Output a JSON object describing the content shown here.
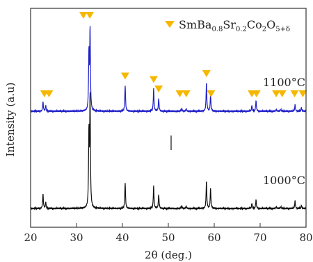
{
  "chart_data": {
    "type": "line",
    "title": "",
    "xlabel": "2θ (deg.)",
    "ylabel": "Intensity (a.u)",
    "xlim": [
      20,
      80
    ],
    "x_ticks": [
      "20",
      "30",
      "40",
      "50",
      "60",
      "70",
      "80"
    ],
    "y_ticks_shown": false,
    "grid": false,
    "legend": {
      "placement": "top-right",
      "marker": "down-triangle",
      "marker_color": "#f5b800",
      "label_parts": [
        "SmBa",
        "0.8",
        "Sr",
        "0.2",
        "Co",
        "2",
        "O",
        "5+δ"
      ]
    },
    "series": [
      {
        "name": "1100°C",
        "color": "#1f1fc8",
        "offset": 1.0,
        "peaks": [
          {
            "x": 22.7,
            "h": 0.08
          },
          {
            "x": 23.3,
            "h": 0.05
          },
          {
            "x": 32.7,
            "h": 0.48
          },
          {
            "x": 32.95,
            "h": 0.68
          },
          {
            "x": 40.6,
            "h": 0.22
          },
          {
            "x": 46.8,
            "h": 0.19
          },
          {
            "x": 47.9,
            "h": 0.11
          },
          {
            "x": 52.9,
            "h": 0.02
          },
          {
            "x": 53.9,
            "h": 0.02
          },
          {
            "x": 58.3,
            "h": 0.24
          },
          {
            "x": 59.2,
            "h": 0.14
          },
          {
            "x": 68.2,
            "h": 0.05
          },
          {
            "x": 69.1,
            "h": 0.09
          },
          {
            "x": 73.5,
            "h": 0.015
          },
          {
            "x": 74.5,
            "h": 0.015
          },
          {
            "x": 77.6,
            "h": 0.055
          },
          {
            "x": 79.0,
            "h": 0.03
          }
        ]
      },
      {
        "name": "1000°C",
        "color": "#111111",
        "offset": 0.0,
        "peaks": [
          {
            "x": 22.7,
            "h": 0.125
          },
          {
            "x": 23.3,
            "h": 0.055
          },
          {
            "x": 32.7,
            "h": 0.62
          },
          {
            "x": 32.95,
            "h": 0.93
          },
          {
            "x": 40.6,
            "h": 0.22
          },
          {
            "x": 46.8,
            "h": 0.19
          },
          {
            "x": 47.9,
            "h": 0.12
          },
          {
            "x": 52.9,
            "h": 0.02
          },
          {
            "x": 53.9,
            "h": 0.02
          },
          {
            "x": 58.3,
            "h": 0.23
          },
          {
            "x": 59.2,
            "h": 0.17
          },
          {
            "x": 68.2,
            "h": 0.045
          },
          {
            "x": 69.1,
            "h": 0.075
          },
          {
            "x": 73.5,
            "h": 0.015
          },
          {
            "x": 74.5,
            "h": 0.015
          },
          {
            "x": 77.6,
            "h": 0.065
          },
          {
            "x": 79.0,
            "h": 0.025
          }
        ]
      }
    ],
    "phase_markers_x": [
      23.0,
      24.0,
      31.5,
      32.9,
      40.6,
      46.8,
      47.9,
      52.5,
      53.9,
      58.3,
      59.3,
      68.2,
      69.2,
      73.5,
      74.8,
      77.5,
      79.3
    ]
  }
}
